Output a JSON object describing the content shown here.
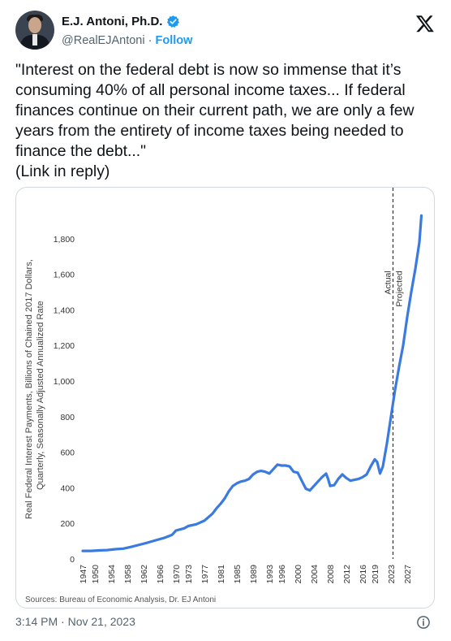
{
  "author": {
    "name": "E.J. Antoni, Ph.D.",
    "handle": "@RealEJAntoni",
    "separator": "·",
    "follow_label": "Follow"
  },
  "tweet": {
    "line1": "\"Interest on the federal debt is now so immense that it’s",
    "line2": "consuming 40% of all personal income taxes... If federal",
    "line3": "finances continue on their current path, we are only a few",
    "line4": "years from the entirety of income taxes being needed to",
    "line5": "finance the debt...\"",
    "line6": "(Link in reply)"
  },
  "timestamp": "3:14 PM · Nov 21, 2023",
  "icons": {
    "verified": "verified-badge-icon",
    "x_logo": "x-logo-icon",
    "info": "info-icon"
  },
  "colors": {
    "accent": "#1d9bf0",
    "line": "#3b7be0"
  },
  "chart_data": {
    "type": "line",
    "ylabel_line1": "Real Federal Interest Payments, Billions of Chained 2017 Dollars,",
    "ylabel_line2": "Quarterly, Seasonally Adjusted Annualized Rate",
    "source": "Sources: Bureau of Economic Analysis, Dr. EJ Antoni",
    "ylim": [
      0,
      1950
    ],
    "xlim": [
      1947,
      2031
    ],
    "yticks": [
      "0",
      "200",
      "400",
      "600",
      "800",
      "1,000",
      "1,200",
      "1,400",
      "1,600",
      "1,800"
    ],
    "yticks_values": [
      0,
      200,
      400,
      600,
      800,
      1000,
      1200,
      1400,
      1600,
      1800
    ],
    "xticks": [
      "1947",
      "1950",
      "1954",
      "1958",
      "1962",
      "1966",
      "1970",
      "1973",
      "1977",
      "1981",
      "1985",
      "1989",
      "1993",
      "1996",
      "2000",
      "2004",
      "2008",
      "2012",
      "2016",
      "2019",
      "2023",
      "2027"
    ],
    "xticks_values": [
      1947,
      1950,
      1954,
      1958,
      1962,
      1966,
      1970,
      1973,
      1977,
      1981,
      1985,
      1989,
      1993,
      1996,
      2000,
      2004,
      2008,
      2012,
      2016,
      2019,
      2023,
      2027
    ],
    "divider_x": 2023.5,
    "annotation_actual": "Actual",
    "annotation_projected": "Projected",
    "grid": false,
    "series": [
      {
        "x": [
          1947,
          1949,
          1951,
          1953,
          1955,
          1957,
          1959,
          1961,
          1963,
          1965,
          1967,
          1969,
          1970,
          1972,
          1973,
          1975,
          1977,
          1979,
          1980,
          1981,
          1982,
          1983,
          1984,
          1985,
          1986,
          1987,
          1988,
          1989,
          1990,
          1991,
          1992,
          1993,
          1994,
          1995,
          1996,
          1997,
          1998,
          1999,
          2000,
          2001,
          2002,
          2003,
          2004,
          2005,
          2006,
          2007,
          2007.5,
          2008,
          2009,
          2010,
          2011,
          2012,
          2013,
          2014,
          2015,
          2016,
          2017,
          2018,
          2019,
          2019.6,
          2020.3,
          2021,
          2022,
          2023,
          2024,
          2025,
          2026,
          2027,
          2028,
          2029,
          2030,
          2030.5
        ],
        "values": [
          45,
          45,
          48,
          50,
          55,
          58,
          68,
          80,
          92,
          105,
          118,
          135,
          160,
          172,
          185,
          195,
          215,
          255,
          285,
          310,
          340,
          380,
          410,
          425,
          435,
          440,
          450,
          475,
          490,
          495,
          490,
          480,
          505,
          530,
          525,
          525,
          520,
          490,
          485,
          440,
          395,
          385,
          410,
          435,
          460,
          480,
          450,
          410,
          415,
          450,
          475,
          455,
          440,
          445,
          450,
          460,
          475,
          520,
          560,
          545,
          480,
          520,
          650,
          800,
          950,
          1080,
          1200,
          1360,
          1500,
          1630,
          1780,
          1930
        ]
      }
    ]
  }
}
